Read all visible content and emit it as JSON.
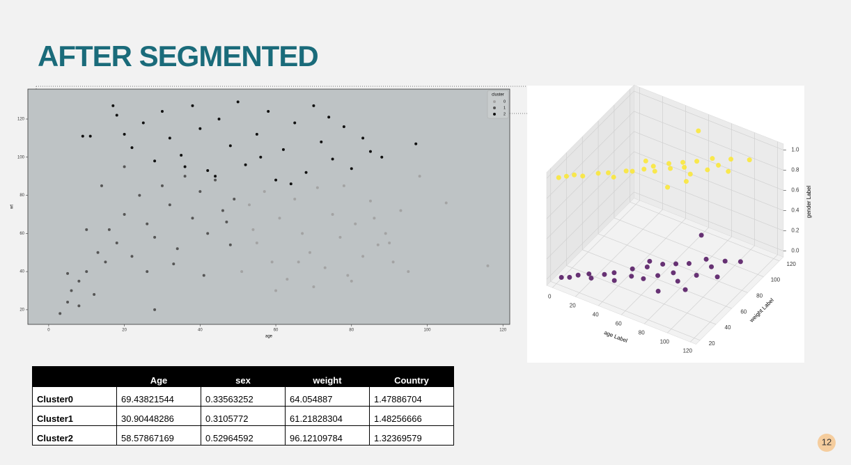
{
  "slide": {
    "title": "AFTER SEGMENTED",
    "page_number": "12"
  },
  "table": {
    "header": [
      "Age",
      "sex",
      "weight",
      "Country"
    ],
    "rows": [
      {
        "label": "Cluster0",
        "values": [
          69.43821544,
          0.33563252,
          64.054887,
          1.47886704
        ]
      },
      {
        "label": "Cluster1",
        "values": [
          30.90448286,
          0.3105772,
          61.21828304,
          1.48256666
        ]
      },
      {
        "label": "Cluster2",
        "values": [
          58.57867169,
          0.52964592,
          96.12109784,
          1.32369579
        ]
      }
    ]
  },
  "chart_data": [
    {
      "type": "scatter",
      "x_label": "age",
      "y_label": "wt",
      "legend_title": "cluster",
      "xlim": [
        -5.5,
        121.8
      ],
      "ylim": [
        12.3,
        135.7
      ],
      "xticks": [
        0,
        20,
        40,
        60,
        80,
        100,
        120
      ],
      "yticks": [
        20,
        40,
        60,
        80,
        100,
        120
      ],
      "series": [
        {
          "name": "0",
          "color": "#a3a3a3",
          "x": [
            51,
            53,
            55,
            57,
            59,
            61,
            63,
            65,
            67,
            69,
            71,
            73,
            75,
            77,
            79,
            81,
            83,
            85,
            87,
            89,
            91,
            93,
            95,
            98,
            105,
            116,
            60,
            70,
            80,
            90,
            54,
            66,
            78,
            86
          ],
          "y": [
            40,
            75,
            55,
            82,
            45,
            68,
            36,
            78,
            60,
            50,
            84,
            42,
            70,
            58,
            38,
            65,
            48,
            77,
            54,
            60,
            45,
            72,
            40,
            90,
            76,
            43,
            30,
            32,
            35,
            55,
            62,
            45,
            85,
            68
          ]
        },
        {
          "name": "1",
          "color": "#555555",
          "x": [
            3,
            5,
            6,
            8,
            8,
            10,
            12,
            13,
            15,
            16,
            18,
            20,
            22,
            24,
            26,
            28,
            30,
            32,
            34,
            36,
            38,
            40,
            42,
            44,
            46,
            48,
            49,
            14,
            20,
            26,
            33,
            41,
            47,
            5,
            28,
            10
          ],
          "y": [
            18,
            24,
            30,
            22,
            35,
            40,
            28,
            50,
            45,
            62,
            55,
            70,
            48,
            80,
            65,
            58,
            85,
            75,
            52,
            90,
            68,
            82,
            60,
            88,
            72,
            54,
            78,
            85,
            95,
            40,
            44,
            38,
            66,
            39,
            20,
            62
          ]
        },
        {
          "name": "2",
          "color": "#111111",
          "x": [
            17,
            18,
            20,
            22,
            25,
            28,
            30,
            32,
            35,
            38,
            40,
            42,
            45,
            48,
            50,
            52,
            55,
            58,
            60,
            62,
            65,
            68,
            70,
            72,
            75,
            78,
            80,
            83,
            85,
            88,
            9,
            11,
            97,
            64,
            44,
            56,
            36,
            74
          ],
          "y": [
            127,
            122,
            112,
            105,
            118,
            98,
            124,
            110,
            101,
            127,
            115,
            93,
            120,
            106,
            129,
            96,
            112,
            124,
            88,
            104,
            118,
            92,
            127,
            108,
            99,
            116,
            94,
            110,
            103,
            100,
            111,
            111,
            107,
            86,
            90,
            100,
            95,
            121
          ]
        }
      ]
    },
    {
      "type": "scatter3d",
      "x_label": "age Label",
      "y_label": "weight Label",
      "z_label": "gender Label",
      "xlim": [
        -5,
        125
      ],
      "ylim": [
        15,
        125
      ],
      "zlim": [
        -0.06,
        1.06
      ],
      "xticks": [
        0,
        20,
        40,
        60,
        80,
        100,
        120
      ],
      "yticks": [
        20,
        40,
        60,
        80,
        100,
        120
      ],
      "zticks": [
        {
          "value": 0,
          "label": "0.0"
        },
        0.2,
        0.4,
        0.6,
        0.8,
        {
          "value": 1,
          "label": "1.0"
        }
      ],
      "series": [
        {
          "color": "#440154",
          "x": [
            3,
            8,
            12,
            18,
            22,
            28,
            33,
            38,
            42,
            46,
            50,
            55,
            58,
            62,
            66,
            70,
            74,
            78,
            82,
            86,
            90,
            95,
            100,
            105,
            64,
            72,
            48,
            88
          ],
          "y": [
            22,
            25,
            30,
            35,
            32,
            40,
            45,
            38,
            55,
            48,
            62,
            50,
            70,
            58,
            75,
            66,
            80,
            60,
            90,
            72,
            85,
            95,
            78,
            100,
            110,
            44,
            68,
            55
          ],
          "z": [
            0,
            0,
            0,
            0,
            0,
            0,
            0,
            0,
            0,
            0,
            0,
            0,
            0,
            0,
            0,
            0,
            0,
            0,
            0,
            0,
            0,
            0,
            0,
            0,
            0,
            0,
            0,
            0
          ]
        },
        {
          "color": "#fde725",
          "x": [
            2,
            6,
            10,
            16,
            24,
            30,
            36,
            40,
            44,
            50,
            54,
            58,
            62,
            66,
            70,
            74,
            78,
            82,
            86,
            90,
            94,
            98,
            104,
            110,
            60,
            76,
            46,
            84
          ],
          "y": [
            20,
            24,
            28,
            30,
            38,
            42,
            40,
            50,
            52,
            58,
            64,
            60,
            72,
            68,
            78,
            74,
            84,
            70,
            92,
            80,
            88,
            98,
            86,
            104,
            112,
            50,
            66,
            62
          ],
          "z": [
            1,
            1,
            1,
            1,
            1,
            1,
            1,
            1,
            1,
            1,
            1,
            1,
            1,
            1,
            1,
            1,
            1,
            1,
            1,
            1,
            1,
            1,
            1,
            1,
            1,
            1,
            1,
            1
          ]
        }
      ]
    }
  ]
}
